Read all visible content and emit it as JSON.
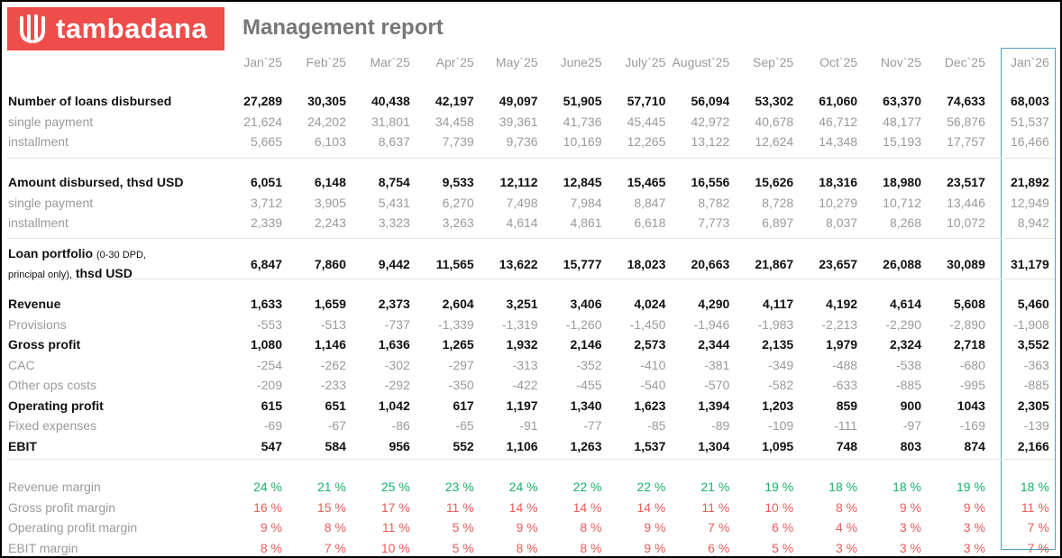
{
  "header": {
    "logo": "tambadana",
    "title": "Management report"
  },
  "table": {
    "columns": [
      "Jan`25",
      "Feb`25",
      "Mar`25",
      "Apr`25",
      "May`25",
      "June25",
      "July`25",
      "August`25",
      "Sep`25",
      "Oct`25",
      "Nov`25",
      "Dec`25",
      "Jan`26"
    ],
    "sections": [
      {
        "rows": [
          {
            "label": "Number of loans disbursed",
            "style": "main",
            "values": [
              "27,289",
              "30,305",
              "40,438",
              "42,197",
              "49,097",
              "51,905",
              "57,710",
              "56,094",
              "53,302",
              "61,060",
              "63,370",
              "74,633",
              "68,003"
            ]
          },
          {
            "label": "single payment",
            "style": "sub",
            "values": [
              "21,624",
              "24,202",
              "31,801",
              "34,458",
              "39,361",
              "41,736",
              "45,445",
              "42,972",
              "40,678",
              "46,712",
              "48,177",
              "56,876",
              "51,537"
            ]
          },
          {
            "label": "installment",
            "style": "sub",
            "values": [
              "5,665",
              "6,103",
              "8,637",
              "7,739",
              "9,736",
              "10,169",
              "12,265",
              "13,122",
              "12,624",
              "14,348",
              "15,193",
              "17,757",
              "16,466"
            ]
          }
        ]
      },
      {
        "rows": [
          {
            "label": "Amount disbursed, thsd USD",
            "style": "main",
            "values": [
              "6,051",
              "6,148",
              "8,754",
              "9,533",
              "12,112",
              "12,845",
              "15,465",
              "16,556",
              "15,626",
              "18,316",
              "18,980",
              "23,517",
              "21,892"
            ]
          },
          {
            "label": "single payment",
            "style": "sub",
            "values": [
              "3,712",
              "3,905",
              "5,431",
              "6,270",
              "7,498",
              "7,984",
              "8,847",
              "8,782",
              "8,728",
              "10,279",
              "10,712",
              "13,446",
              "12,949"
            ]
          },
          {
            "label": "installment",
            "style": "sub",
            "values": [
              "2,339",
              "2,243",
              "3,323",
              "3,263",
              "4,614",
              "4,861",
              "6,618",
              "7,773",
              "6,897",
              "8,037",
              "8,268",
              "10,072",
              "8,942"
            ]
          }
        ]
      },
      {
        "rows": [
          {
            "label": "Loan portfolio",
            "note": "(0-30 DPD, principal only),",
            "unit": "thsd USD",
            "style": "main",
            "values": [
              "6,847",
              "7,860",
              "9,442",
              "11,565",
              "13,622",
              "15,777",
              "18,023",
              "20,663",
              "21,867",
              "23,657",
              "26,088",
              "30,089",
              "31,179"
            ]
          }
        ]
      },
      {
        "rows": [
          {
            "label": "Revenue",
            "style": "main",
            "values": [
              "1,633",
              "1,659",
              "2,373",
              "2,604",
              "3,251",
              "3,406",
              "4,024",
              "4,290",
              "4,117",
              "4,192",
              "4,614",
              "5,608",
              "5,460"
            ]
          },
          {
            "label": "Provisions",
            "style": "sub",
            "values": [
              "-553",
              "-513",
              "-737",
              "-1,339",
              "-1,319",
              "-1,260",
              "-1,450",
              "-1,946",
              "-1,983",
              "-2,213",
              "-2,290",
              "-2,890",
              "-1,908"
            ]
          },
          {
            "label": "Gross profit",
            "style": "main",
            "values": [
              "1,080",
              "1,146",
              "1,636",
              "1,265",
              "1,932",
              "2,146",
              "2,573",
              "2,344",
              "2,135",
              "1,979",
              "2,324",
              "2,718",
              "3,552"
            ]
          },
          {
            "label": "CAC",
            "style": "sub",
            "values": [
              "-254",
              "-262",
              "-302",
              "-297",
              "-313",
              "-352",
              "-410",
              "-381",
              "-349",
              "-488",
              "-538",
              "-680",
              "-363"
            ]
          },
          {
            "label": "Other ops costs",
            "style": "sub",
            "values": [
              "-209",
              "-233",
              "-292",
              "-350",
              "-422",
              "-455",
              "-540",
              "-570",
              "-582",
              "-633",
              "-885",
              "-995",
              "-885"
            ]
          },
          {
            "label": "Operating profit",
            "style": "main",
            "values": [
              "615",
              "651",
              "1,042",
              "617",
              "1,197",
              "1,340",
              "1,623",
              "1,394",
              "1,203",
              "859",
              "900",
              "1043",
              "2,305"
            ]
          },
          {
            "label": "Fixed expenses",
            "style": "sub",
            "values": [
              "-69",
              "-67",
              "-86",
              "-65",
              "-91",
              "-77",
              "-85",
              "-89",
              "-109",
              "-111",
              "-97",
              "-169",
              "-139"
            ]
          },
          {
            "label": "EBIT",
            "style": "main",
            "values": [
              "547",
              "584",
              "956",
              "552",
              "1,106",
              "1,263",
              "1,537",
              "1,304",
              "1,095",
              "748",
              "803",
              "874",
              "2,166"
            ]
          }
        ]
      },
      {
        "rows": [
          {
            "label": "Revenue margin",
            "style": "margin",
            "value_color": "#17b26a",
            "values": [
              "24 %",
              "21 %",
              "25 %",
              "23 %",
              "24 %",
              "22 %",
              "22 %",
              "21 %",
              "19 %",
              "18 %",
              "18 %",
              "19 %",
              "18 %"
            ]
          },
          {
            "label": "Gross profit margin",
            "style": "margin",
            "value_color": "#ec5b5b",
            "values": [
              "16 %",
              "15 %",
              "17 %",
              "11 %",
              "14 %",
              "14 %",
              "14 %",
              "11 %",
              "10 %",
              "8 %",
              "9 %",
              "9 %",
              "11 %"
            ]
          },
          {
            "label": "Operating profit margin",
            "style": "margin",
            "value_color": "#ec5b5b",
            "values": [
              "9 %",
              "8 %",
              "11 %",
              "5 %",
              "9 %",
              "8 %",
              "9 %",
              "7 %",
              "6 %",
              "4 %",
              "3 %",
              "3 %",
              "7 %"
            ]
          },
          {
            "label": "EBIT margin",
            "style": "margin",
            "value_color": "#ec5b5b",
            "values": [
              "8 %",
              "7 %",
              "10 %",
              "5 %",
              "8 %",
              "8 %",
              "9 %",
              "6 %",
              "5 %",
              "3 %",
              "3 %",
              "3 %",
              "7 %"
            ]
          }
        ]
      }
    ]
  }
}
